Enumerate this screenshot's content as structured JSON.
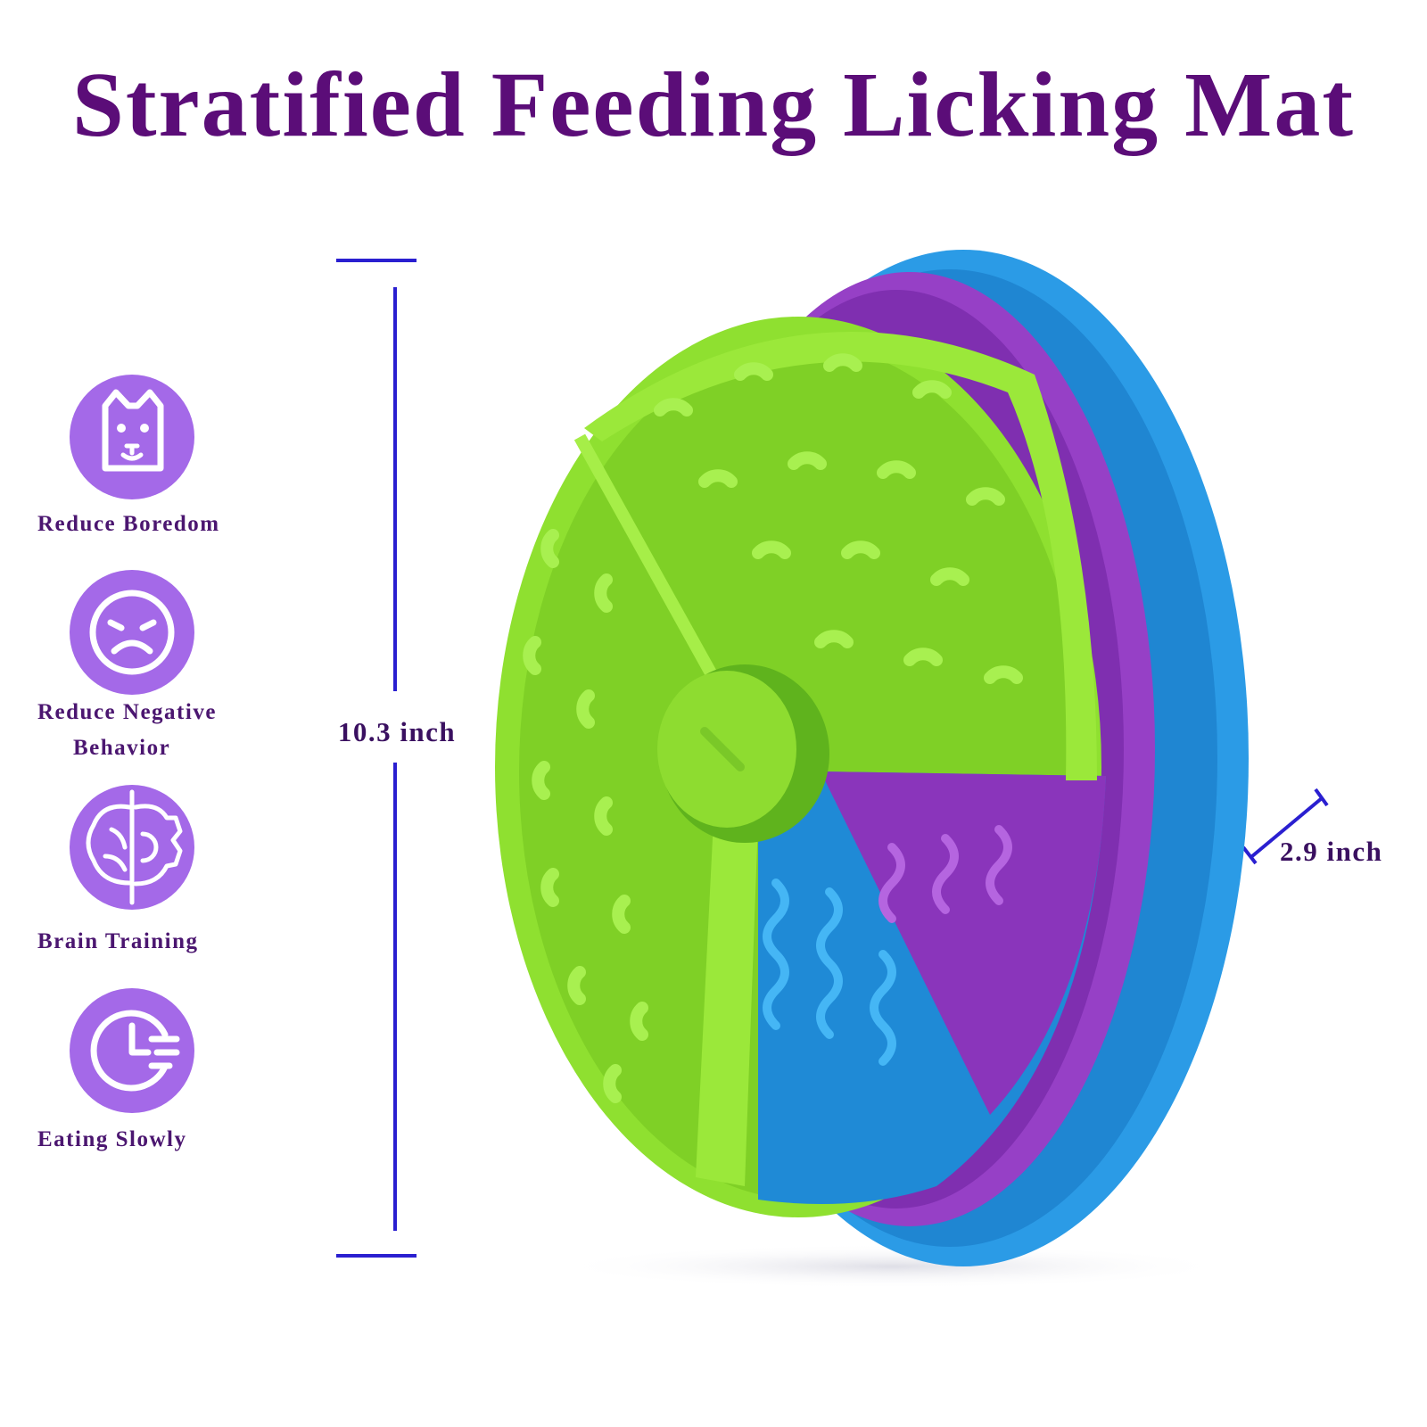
{
  "header": {
    "title": "Stratified Feeding Licking Mat"
  },
  "features": [
    {
      "lines": [
        "Reduce Boredom"
      ]
    },
    {
      "lines": [
        "Reduce Negative",
        "Behavior"
      ]
    },
    {
      "lines": [
        "Brain Training"
      ]
    },
    {
      "lines": [
        "Eating Slowly"
      ]
    }
  ],
  "dimensions": {
    "height": "10.3 inch",
    "depth": "2.9 inch"
  }
}
